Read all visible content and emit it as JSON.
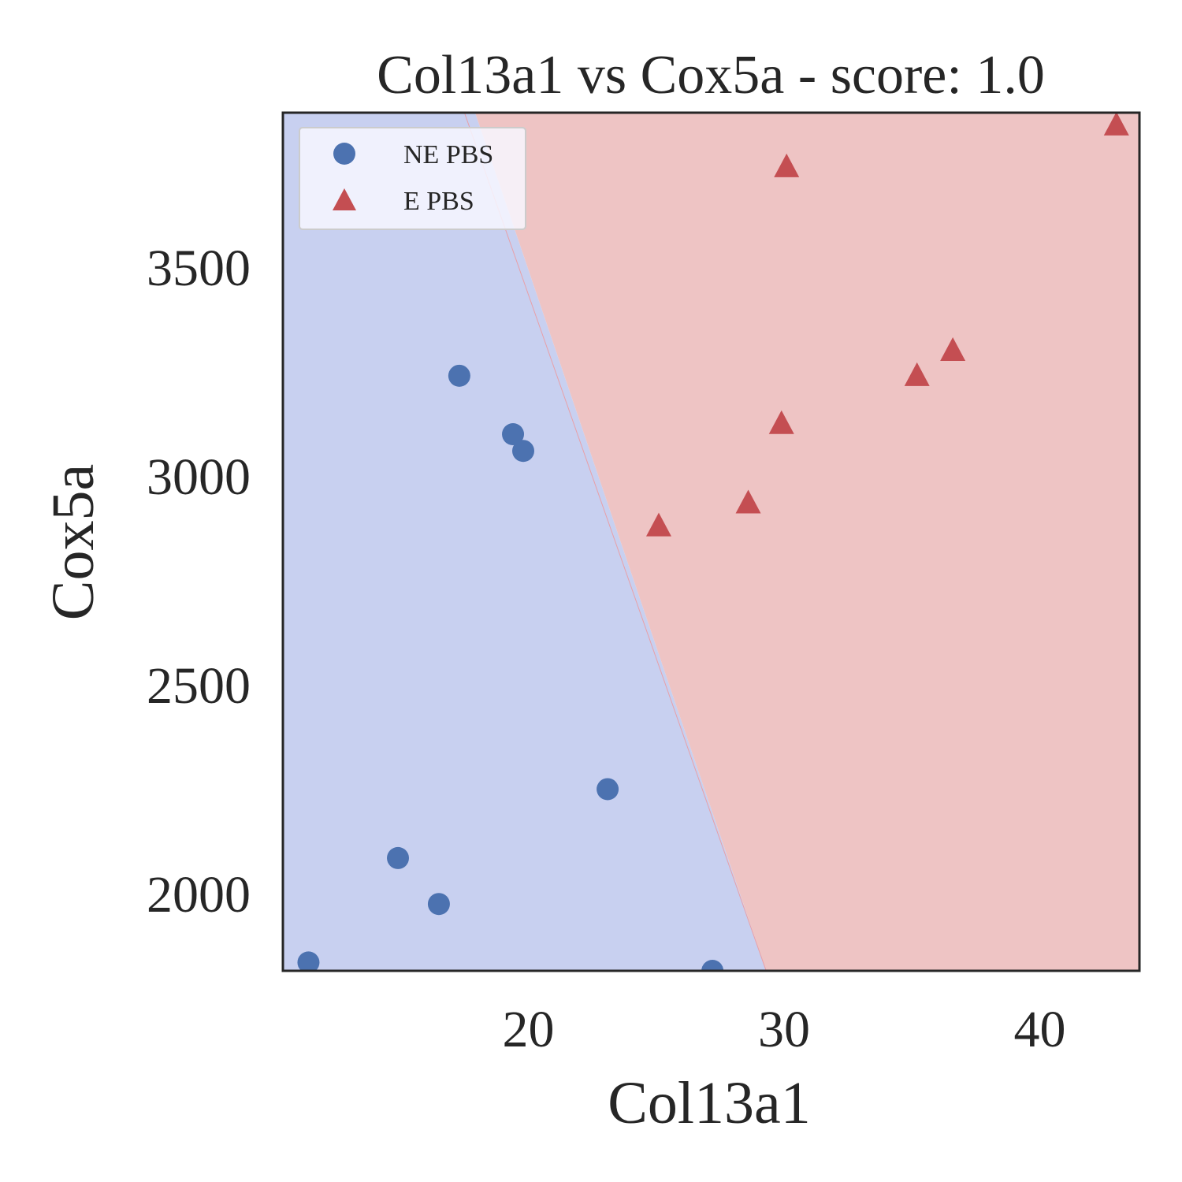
{
  "chart_data": {
    "type": "scatter",
    "title": "Col13a1 vs Cox5a - score: 1.0",
    "xlabel": "Col13a1",
    "ylabel": "Cox5a",
    "xlim": [
      10.4,
      43.9
    ],
    "ylim": [
      1815,
      3870
    ],
    "xticks": [
      20,
      30,
      40
    ],
    "yticks": [
      2000,
      2500,
      3000,
      3500
    ],
    "grid": false,
    "legend_position": "upper-left",
    "decision_boundary": {
      "description": "linear classifier regions",
      "line_points": [
        [
          17.5,
          3870
        ],
        [
          29.3,
          1815
        ]
      ],
      "left_region": "NE PBS",
      "right_region": "E PBS"
    },
    "series": [
      {
        "name": "NE PBS",
        "marker": "circle",
        "color": "#4c72b0",
        "region_color": "#c8d0f0",
        "points": [
          [
            11.4,
            1835
          ],
          [
            14.9,
            2085
          ],
          [
            16.5,
            1975
          ],
          [
            17.3,
            3240
          ],
          [
            19.4,
            3100
          ],
          [
            19.8,
            3060
          ],
          [
            23.1,
            2250
          ],
          [
            27.2,
            1815
          ]
        ]
      },
      {
        "name": "E PBS",
        "marker": "triangle",
        "color": "#c44e52",
        "region_color": "#eec4c4",
        "points": [
          [
            25.1,
            2880
          ],
          [
            28.6,
            2935
          ],
          [
            29.9,
            3125
          ],
          [
            30.1,
            3740
          ],
          [
            35.2,
            3240
          ],
          [
            36.6,
            3300
          ],
          [
            43.0,
            3840
          ]
        ]
      }
    ]
  }
}
